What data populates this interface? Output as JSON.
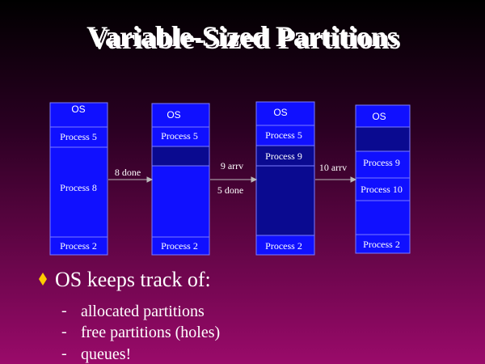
{
  "title": "Variable-Sized Partitions",
  "columns": [
    {
      "blocks": [
        "OS",
        "Process 5",
        "Process 8",
        "Process 2"
      ]
    },
    {
      "blocks": [
        "OS",
        "Process 5",
        "Process 2"
      ]
    },
    {
      "blocks": [
        "OS",
        "Process 5",
        "Process 9",
        "Process 2"
      ]
    },
    {
      "blocks": [
        "OS",
        "Process 9",
        "Process 10",
        "Process 2"
      ]
    }
  ],
  "transitions": [
    {
      "labels": [
        "8 done"
      ]
    },
    {
      "labels": [
        "9 arrv",
        "5 done"
      ]
    },
    {
      "labels": [
        "10 arrv"
      ]
    }
  ],
  "bullet": "OS keeps track of:",
  "sub_bullets": [
    "allocated partitions",
    "free partitions (holes)",
    "queues!"
  ]
}
